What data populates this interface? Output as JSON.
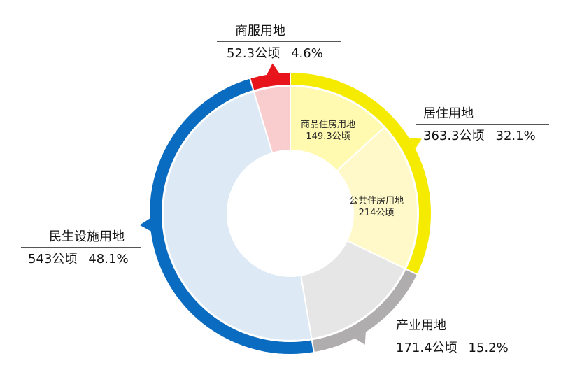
{
  "chart_data": {
    "type": "pie",
    "variant": "nested-donut",
    "unit": "公顷",
    "outer": [
      {
        "name": "居住用地",
        "value": 363.3,
        "percent": "32.1%",
        "color": "#F5EB00",
        "fill": "#FFF9C4"
      },
      {
        "name": "产业用地",
        "value": 171.4,
        "percent": "15.2%",
        "color": "#AFADAD",
        "fill": "#E6E6E6"
      },
      {
        "name": "民生设施用地",
        "value": 543,
        "percent": "48.1%",
        "color": "#0A6CC0",
        "fill": "#DDEAF5"
      },
      {
        "name": "商服用地",
        "value": 52.3,
        "percent": "4.6%",
        "color": "#E8141B",
        "fill": "#F9CCCD"
      }
    ],
    "inner_residential": [
      {
        "name": "商品住房用地",
        "value": 149.3,
        "value_label": "149.3公顷",
        "fill": "#FFFAB0"
      },
      {
        "name": "公共住房用地",
        "value": 214,
        "value_label": "214公顷",
        "fill": "#FFF9C9"
      }
    ],
    "labels": {
      "shangfu": {
        "title": "商服用地",
        "value": "52.3公顷",
        "pct": "4.6%"
      },
      "juzhu": {
        "title": "居住用地",
        "value": "363.3公顷",
        "pct": "32.1%"
      },
      "chanye": {
        "title": "产业用地",
        "value": "171.4公顷",
        "pct": "15.2%"
      },
      "minsheng": {
        "title": "民生设施用地",
        "value": "543公顷",
        "pct": "48.1%"
      }
    }
  }
}
